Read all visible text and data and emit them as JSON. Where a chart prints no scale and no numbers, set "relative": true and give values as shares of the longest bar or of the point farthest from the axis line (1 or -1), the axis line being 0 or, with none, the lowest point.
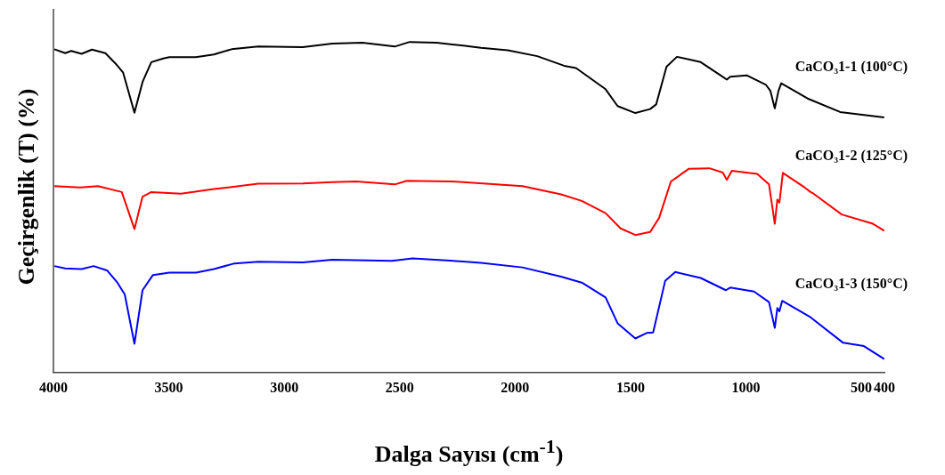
{
  "chart_data": {
    "type": "line",
    "relative": true,
    "xlabel": "Dalga Sayısı (cm$^{-1}$)",
    "ylabel": "Geçirgenlik (T) (%)",
    "xlim": [
      4000,
      400
    ],
    "xticks": [
      4000,
      3500,
      3000,
      2500,
      2000,
      1500,
      1000,
      500,
      400
    ],
    "grid": false,
    "legend": false,
    "marker": "none",
    "line_style": "solid",
    "series": [
      {
        "name": "CaCO₃1-1 (100°C)",
        "color": "#000000",
        "x": [
          3996,
          3949,
          3923,
          3878,
          3833,
          3775,
          3730,
          3698,
          3649,
          3614,
          3576,
          3524,
          3498,
          3383,
          3305,
          3228,
          3113,
          2920,
          2792,
          2662,
          2521,
          2457,
          2341,
          2225,
          2148,
          2032,
          1904,
          1788,
          1736,
          1608,
          1556,
          1479,
          1415,
          1389,
          1344,
          1299,
          1196,
          1106,
          1083,
          1068,
          997,
          913,
          894,
          875,
          859,
          847,
          733,
          592,
          401
        ],
        "values": [
          0.978,
          0.966,
          0.973,
          0.964,
          0.977,
          0.966,
          0.934,
          0.907,
          0.786,
          0.879,
          0.939,
          0.95,
          0.954,
          0.954,
          0.962,
          0.978,
          0.986,
          0.984,
          0.995,
          0.998,
          0.986,
          1.0,
          0.998,
          0.989,
          0.982,
          0.975,
          0.957,
          0.928,
          0.921,
          0.857,
          0.806,
          0.785,
          0.797,
          0.811,
          0.925,
          0.955,
          0.939,
          0.897,
          0.886,
          0.895,
          0.899,
          0.87,
          0.852,
          0.799,
          0.852,
          0.875,
          0.829,
          0.788,
          0.772
        ]
      },
      {
        "name": "CaCO₃1-2 (125°C)",
        "color": "#ff0000",
        "x": [
          3996,
          3884,
          3807,
          3704,
          3649,
          3614,
          3576,
          3447,
          3305,
          3113,
          2920,
          2792,
          2688,
          2521,
          2469,
          2276,
          2225,
          1968,
          1801,
          1711,
          1608,
          1543,
          1479,
          1415,
          1376,
          1325,
          1248,
          1158,
          1100,
          1083,
          1061,
          951,
          900,
          875,
          864,
          855,
          840,
          746,
          720,
          707,
          585,
          450,
          401
        ],
        "values": [
          0.564,
          0.56,
          0.564,
          0.546,
          0.434,
          0.532,
          0.546,
          0.541,
          0.555,
          0.571,
          0.572,
          0.576,
          0.578,
          0.569,
          0.58,
          0.578,
          0.576,
          0.564,
          0.539,
          0.519,
          0.482,
          0.436,
          0.416,
          0.425,
          0.468,
          0.578,
          0.616,
          0.618,
          0.605,
          0.583,
          0.61,
          0.601,
          0.569,
          0.45,
          0.523,
          0.514,
          0.604,
          0.56,
          0.546,
          0.541,
          0.478,
          0.45,
          0.429
        ]
      },
      {
        "name": "CaCO₃1-3 (150°C)",
        "color": "#0000ff",
        "x": [
          3996,
          3949,
          3878,
          3826,
          3768,
          3723,
          3691,
          3649,
          3614,
          3569,
          3498,
          3383,
          3305,
          3216,
          3113,
          2920,
          2792,
          2534,
          2444,
          2225,
          2148,
          1968,
          1801,
          1711,
          1608,
          1556,
          1479,
          1428,
          1402,
          1350,
          1306,
          1196,
          1087,
          1068,
          965,
          900,
          875,
          864,
          855,
          843,
          720,
          579,
          489,
          401
        ],
        "values": [
          0.322,
          0.315,
          0.313,
          0.322,
          0.309,
          0.272,
          0.236,
          0.087,
          0.249,
          0.295,
          0.302,
          0.302,
          0.313,
          0.33,
          0.335,
          0.333,
          0.341,
          0.338,
          0.345,
          0.336,
          0.332,
          0.318,
          0.29,
          0.272,
          0.227,
          0.149,
          0.103,
          0.12,
          0.121,
          0.277,
          0.304,
          0.286,
          0.249,
          0.257,
          0.245,
          0.213,
          0.135,
          0.195,
          0.185,
          0.217,
          0.167,
          0.09,
          0.08,
          0.041
        ]
      }
    ]
  }
}
